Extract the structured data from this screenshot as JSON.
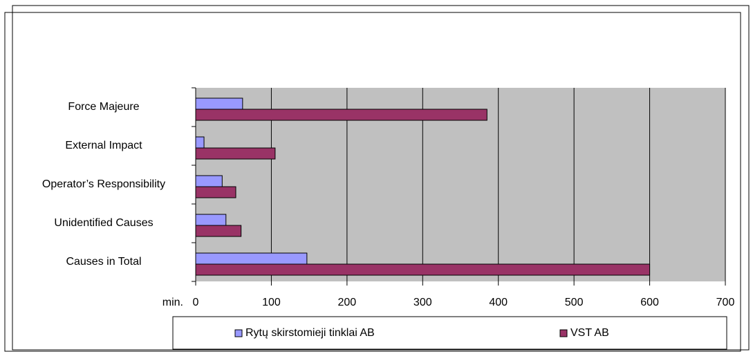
{
  "chart_data": {
    "type": "bar",
    "orientation": "horizontal",
    "categories": [
      "Force Majeure",
      "External Impact",
      "Operator’s Responsibility",
      "Unidentified Causes",
      "Causes in Total"
    ],
    "series": [
      {
        "name": "Rytų skirstomieji tinklai AB",
        "color": "#9999ff",
        "values": [
          62,
          11,
          35,
          40,
          147
        ]
      },
      {
        "name": "VST AB",
        "color": "#993366",
        "values": [
          385,
          105,
          53,
          60,
          600
        ]
      }
    ],
    "x_label": "min.",
    "xlim": [
      0,
      700
    ],
    "xticks": [
      0,
      100,
      200,
      300,
      400,
      500,
      600,
      700
    ],
    "grid": true,
    "plot_background": "#c0c0c0",
    "legend": "bottom"
  }
}
